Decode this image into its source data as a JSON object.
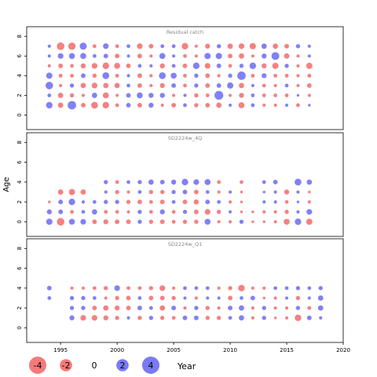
{
  "chart_data": {
    "type": "scatter",
    "ylabel": "Age",
    "xlim": [
      1992,
      2020
    ],
    "ylim": [
      -1,
      8.5
    ],
    "x_ticks": [
      "1995",
      "2000",
      "2005",
      "2010",
      "2015",
      "2020"
    ],
    "y_ticks": [
      "0",
      "2",
      "4",
      "6",
      "8"
    ],
    "colors": {
      "negative": "#f47a7a",
      "positive": "#7a7af4"
    },
    "panels": [
      {
        "title": "Residual catch",
        "ages": [
          1,
          2,
          3,
          4,
          5,
          6,
          7
        ],
        "years": [
          1994,
          1995,
          1996,
          1997,
          1998,
          1999,
          2000,
          2001,
          2002,
          2003,
          2004,
          2005,
          2006,
          2007,
          2008,
          2009,
          2010,
          2011,
          2012,
          2013,
          2014,
          2015,
          2016,
          2017
        ],
        "residuals": [
          [
            1.2,
            -0.8,
            2.0,
            -0.6,
            -1.3,
            -1.2,
            -0.4,
            0.6,
            -0.6,
            0.7,
            -0.3,
            -0.6,
            0.4,
            -0.5,
            -0.6,
            -0.8,
            0.3,
            -1.0,
            0.4,
            -0.3,
            -0.3,
            0.3,
            -0.4,
            0.2
          ],
          [
            0.4,
            -0.8,
            -0.5,
            -0.3,
            0.8,
            -1.0,
            -0.3,
            0.6,
            1.0,
            0.7,
            0.7,
            -0.3,
            0.3,
            -0.5,
            -0.4,
            2.2,
            -0.3,
            -0.7,
            0.4,
            -0.4,
            -0.4,
            -0.4,
            0.2,
            -0.3
          ],
          [
            1.6,
            -0.3,
            0.5,
            -0.8,
            -0.9,
            -0.8,
            -0.8,
            0.4,
            -0.6,
            -0.3,
            -0.7,
            0.6,
            -0.4,
            0.5,
            -0.6,
            0.6,
            1.1,
            -0.8,
            0.3,
            -0.4,
            -0.3,
            0.4,
            -0.3,
            -0.6
          ],
          [
            1.1,
            -0.4,
            -0.4,
            0.6,
            -0.5,
            1.3,
            -0.4,
            0.3,
            -0.6,
            -0.3,
            1.3,
            1.0,
            -0.4,
            0.5,
            -0.6,
            -0.3,
            0.5,
            2.0,
            -0.4,
            0.7,
            -0.4,
            -0.4,
            -0.3,
            -0.4
          ],
          [
            -0.3,
            -0.6,
            -0.4,
            -0.7,
            -0.9,
            -1.2,
            -1.0,
            -0.6,
            0.4,
            0.3,
            -0.7,
            0.4,
            -0.6,
            1.2,
            -0.9,
            0.6,
            -0.4,
            0.5,
            1.2,
            -0.7,
            -1.1,
            0.5,
            -0.3,
            -1.1
          ],
          [
            0.3,
            0.9,
            1.0,
            1.0,
            0.4,
            0.6,
            -0.6,
            0.3,
            -0.6,
            -0.3,
            1.0,
            0.3,
            -0.4,
            -0.3,
            1.1,
            1.1,
            -0.6,
            -0.8,
            -0.3,
            0.7,
            1.7,
            -0.8,
            -0.3,
            0.3
          ],
          [
            0.3,
            -1.6,
            -1.5,
            1.4,
            -0.4,
            0.9,
            -0.4,
            0.4,
            -0.9,
            -0.6,
            0.4,
            0.4,
            -1.2,
            -0.3,
            -0.7,
            0.5,
            -0.8,
            -0.9,
            -1.1,
            0.8,
            -0.8,
            -0.6,
            0.5,
            0.3
          ]
        ]
      },
      {
        "title": "SD2224w_4Q",
        "ages": [
          0,
          1,
          2,
          3,
          4
        ],
        "years": [
          1994,
          1995,
          1996,
          1997,
          1998,
          1999,
          2000,
          2001,
          2002,
          2003,
          2004,
          2005,
          2006,
          2007,
          2008,
          2009,
          2010,
          2011,
          2012,
          2013,
          2014,
          2015,
          2016,
          2017
        ],
        "residuals": [
          [
            1.1,
            -1.6,
            1.0,
            0.9,
            -0.6,
            -0.7,
            -0.6,
            -0.6,
            0.5,
            -0.5,
            -0.6,
            -0.4,
            -0.5,
            -0.5,
            1.0,
            -0.3,
            -0.3,
            0.5,
            -0.2,
            -0.2,
            -0.3,
            -1.0,
            1.2,
            -1.1
          ],
          [
            0.7,
            0.6,
            -0.4,
            0.4,
            0.8,
            -0.4,
            -0.4,
            -0.3,
            0.5,
            -0.4,
            0.7,
            -0.4,
            0.5,
            -0.6,
            -0.9,
            -0.5,
            0.3,
            -0.2,
            -0.2,
            -0.3,
            -0.3,
            -0.5,
            0.3,
            0.9
          ],
          [
            -0.2,
            0.6,
            1.2,
            0.3,
            0.4,
            0.5,
            0.5,
            -0.5,
            -0.6,
            -0.4,
            -0.6,
            0.4,
            -0.6,
            -0.7,
            0.6,
            0.4,
            -0.3,
            -0.2,
            0.0,
            0.3,
            0.3,
            -0.4,
            0.2,
            -0.3
          ],
          [
            0.0,
            -0.8,
            -1.1,
            -0.8,
            0.0,
            0.3,
            -0.5,
            -0.3,
            0.4,
            -0.5,
            -0.5,
            0.5,
            0.6,
            -0.6,
            0.4,
            -0.3,
            0.3,
            -0.2,
            0.0,
            0.2,
            0.3,
            -0.7,
            0.3,
            -0.2
          ],
          [
            0.0,
            0.0,
            0.0,
            0.0,
            0.0,
            0.5,
            -0.4,
            0.4,
            0.5,
            0.8,
            0.6,
            0.7,
            1.2,
            0.9,
            1.0,
            -0.4,
            0.0,
            -0.4,
            0.0,
            0.4,
            0.6,
            0.0,
            1.3,
            0.8
          ]
        ]
      },
      {
        "title": "SD2224w_Q1",
        "ages": [
          1,
          2,
          3,
          4
        ],
        "years": [
          1994,
          1995,
          1996,
          1997,
          1998,
          1999,
          2000,
          2001,
          2002,
          2003,
          2004,
          2005,
          2006,
          2007,
          2008,
          2009,
          2010,
          2011,
          2012,
          2013,
          2014,
          2015,
          2016,
          2017,
          2018
        ],
        "residuals": [
          [
            0.0,
            0.0,
            0.7,
            -0.9,
            -0.9,
            -0.7,
            -0.5,
            0.3,
            -0.5,
            0.5,
            -0.5,
            -0.4,
            0.6,
            0.6,
            -0.5,
            -0.5,
            0.4,
            0.8,
            -0.3,
            0.5,
            -0.2,
            -0.3,
            -1.2,
            0.6,
            0.3
          ],
          [
            0.0,
            0.0,
            0.5,
            0.5,
            -0.6,
            -0.8,
            -0.7,
            -0.6,
            0.6,
            0.4,
            -0.8,
            0.6,
            -0.3,
            0.5,
            -0.5,
            -0.3,
            0.6,
            0.8,
            -0.3,
            0.5,
            -0.3,
            -0.3,
            0.5,
            -0.4,
            0.8
          ],
          [
            0.4,
            0.0,
            0.5,
            0.5,
            0.4,
            -0.3,
            -0.5,
            -0.6,
            0.4,
            -0.6,
            -0.6,
            -0.5,
            0.3,
            -0.3,
            0.3,
            0.3,
            -0.6,
            0.4,
            0.6,
            -0.2,
            -0.3,
            0.3,
            -0.5,
            0.3,
            0.8
          ],
          [
            0.6,
            0.0,
            -0.3,
            -0.3,
            -0.4,
            -0.5,
            0.9,
            -0.4,
            -0.4,
            -0.5,
            -0.9,
            -0.3,
            0.4,
            0.4,
            0.4,
            -0.3,
            -0.5,
            -1.2,
            -0.3,
            -0.3,
            0.4,
            0.4,
            0.5,
            0.4,
            0.5
          ]
        ]
      }
    ],
    "legend": {
      "entries": [
        {
          "label": "-4",
          "value": -4
        },
        {
          "label": "-2",
          "value": -2
        },
        {
          "label": "0",
          "value": 0
        },
        {
          "label": "2",
          "value": 2
        },
        {
          "label": "4",
          "value": 4
        }
      ],
      "xlabel": "Year"
    }
  }
}
